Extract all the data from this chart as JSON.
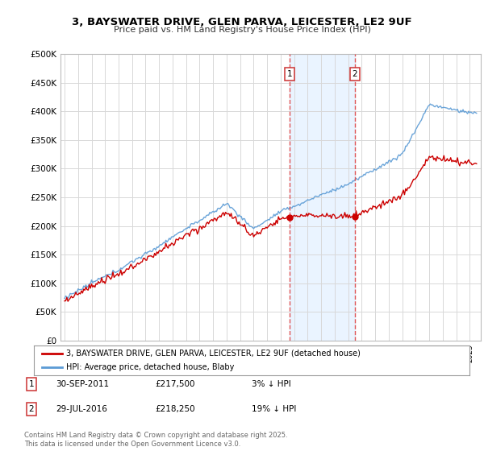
{
  "title": "3, BAYSWATER DRIVE, GLEN PARVA, LEICESTER, LE2 9UF",
  "subtitle": "Price paid vs. HM Land Registry's House Price Index (HPI)",
  "legend_entries": [
    "3, BAYSWATER DRIVE, GLEN PARVA, LEICESTER, LE2 9UF (detached house)",
    "HPI: Average price, detached house, Blaby"
  ],
  "sale1_date": "30-SEP-2011",
  "sale1_price": 217500,
  "sale1_label": "3% ↓ HPI",
  "sale2_date": "29-JUL-2016",
  "sale2_price": 218250,
  "sale2_label": "19% ↓ HPI",
  "footnote": "Contains HM Land Registry data © Crown copyright and database right 2025.\nThis data is licensed under the Open Government Licence v3.0.",
  "ylim": [
    0,
    500000
  ],
  "yticks": [
    0,
    50000,
    100000,
    150000,
    200000,
    250000,
    300000,
    350000,
    400000,
    450000,
    500000
  ],
  "background_color": "#ffffff",
  "plot_bg_color": "#ffffff",
  "grid_color": "#d8d8d8",
  "hpi_color": "#5b9bd5",
  "house_color": "#cc0000",
  "shade_color": "#ddeeff",
  "vline_color": "#e05555",
  "year_start": 1995,
  "year_end": 2025
}
